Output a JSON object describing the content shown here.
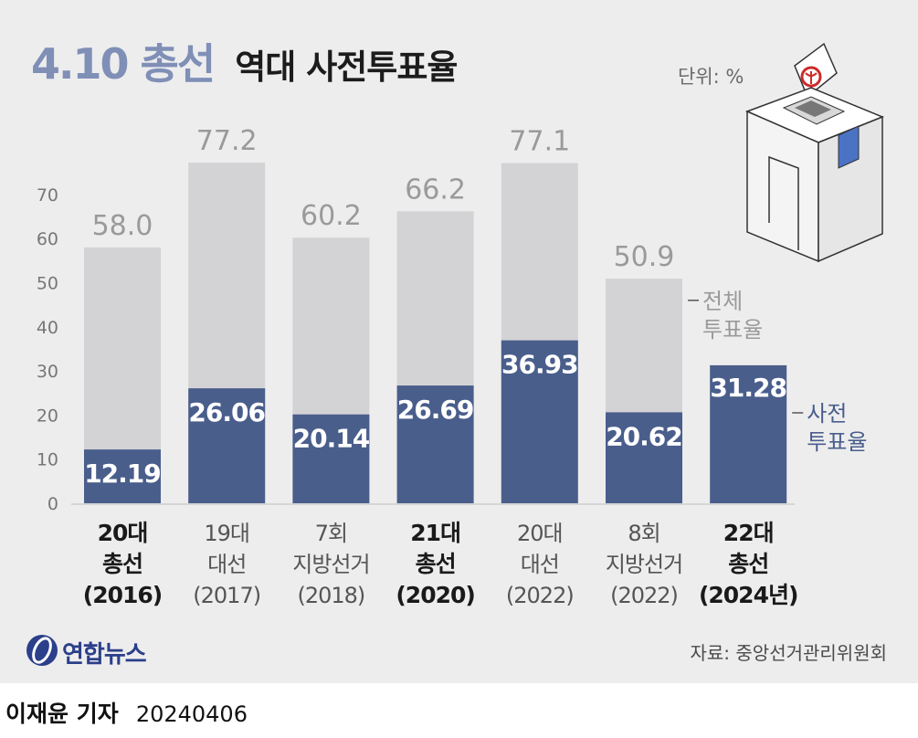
{
  "title": {
    "main": "4.10 총선",
    "sub": "역대 사전투표율"
  },
  "unit": "단위: %",
  "source": "자료: 중앙선거관리위원회",
  "logo_text": "연합뉴스",
  "credit": {
    "author": "이재윤 기자",
    "date": "20240406"
  },
  "colors": {
    "total": "#d3d3d5",
    "early": "#4a5e8c",
    "title_accent": "#7f8fb6",
    "background": "#ededee"
  },
  "chart_data": {
    "type": "bar",
    "categories": [
      {
        "lines": [
          "20대",
          "총선",
          "(2016)"
        ],
        "bold": true
      },
      {
        "lines": [
          "19대",
          "대선",
          "(2017)"
        ],
        "bold": false
      },
      {
        "lines": [
          "7회",
          "지방선거",
          "(2018)"
        ],
        "bold": false
      },
      {
        "lines": [
          "21대",
          "총선",
          "(2020)"
        ],
        "bold": true
      },
      {
        "lines": [
          "20대",
          "대선",
          "(2022)"
        ],
        "bold": false
      },
      {
        "lines": [
          "8회",
          "지방선거",
          "(2022)"
        ],
        "bold": false
      },
      {
        "lines": [
          "22대",
          "총선",
          "(2024년)"
        ],
        "bold": true
      }
    ],
    "series": [
      {
        "name": "전체 투표율",
        "label_lines": [
          "전체",
          "투표율"
        ],
        "values": [
          58.0,
          77.2,
          60.2,
          66.2,
          77.1,
          50.9,
          null
        ],
        "labels": [
          "58.0",
          "77.2",
          "60.2",
          "66.2",
          "77.1",
          "50.9",
          ""
        ]
      },
      {
        "name": "사전 투표율",
        "label_lines": [
          "사전",
          "투표율"
        ],
        "values": [
          12.19,
          26.06,
          20.14,
          26.69,
          36.93,
          20.62,
          31.28
        ],
        "labels": [
          "12.19",
          "26.06",
          "20.14",
          "26.69",
          "36.93",
          "20.62",
          "31.28"
        ]
      }
    ],
    "ylim": [
      0,
      80
    ],
    "yticks": [
      0,
      10,
      20,
      30,
      40,
      50,
      60,
      70
    ],
    "grid": false,
    "legend": "inline-right"
  }
}
